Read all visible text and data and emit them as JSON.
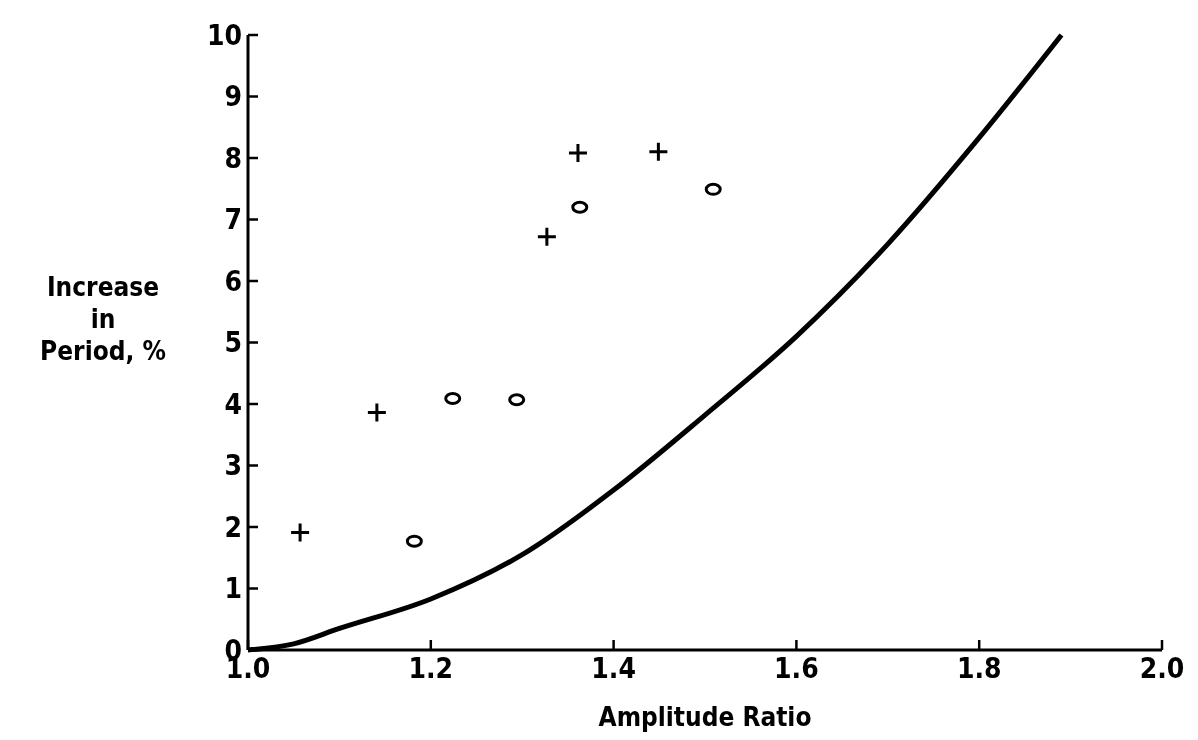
{
  "chart_data": {
    "type": "scatter",
    "xlabel": "Amplitude Ratio",
    "ylabel": "Increase\nin\nPeriod, %",
    "xlim": [
      1.0,
      2.0
    ],
    "xticks": [
      {
        "value": 1.0,
        "label": "1.0"
      },
      {
        "value": 1.2,
        "label": "1.2"
      },
      {
        "value": 1.4,
        "label": "1.4"
      },
      {
        "value": 1.6,
        "label": "1.6"
      },
      {
        "value": 1.8,
        "label": "1.8"
      },
      {
        "value": 2.0,
        "label": "2.0"
      }
    ],
    "ylim": [
      0,
      10
    ],
    "yticks": [
      0,
      1,
      2,
      3,
      4,
      5,
      6,
      7,
      8,
      9,
      10
    ],
    "grid": false,
    "series": [
      {
        "type": "line",
        "color": "#000000",
        "marker": "none",
        "line_style": "solid",
        "x": [
          1.0,
          1.05,
          1.1,
          1.2,
          1.3,
          1.4,
          1.5,
          1.6,
          1.7,
          1.8,
          1.89
        ],
        "values": [
          0,
          0.1,
          0.35,
          0.83,
          1.55,
          2.6,
          3.82,
          5.1,
          6.6,
          8.33,
          10.0
        ]
      },
      {
        "color": "#000000",
        "marker": "cross",
        "x": [
          1.057,
          1.141,
          1.327,
          1.361,
          1.449
        ],
        "values": [
          1.91,
          3.86,
          6.72,
          8.08,
          8.1
        ]
      },
      {
        "color": "#000000",
        "marker": "circle",
        "x": [
          1.182,
          1.224,
          1.294,
          1.363,
          1.509
        ],
        "values": [
          1.77,
          4.09,
          4.07,
          7.2,
          7.49
        ]
      }
    ]
  }
}
